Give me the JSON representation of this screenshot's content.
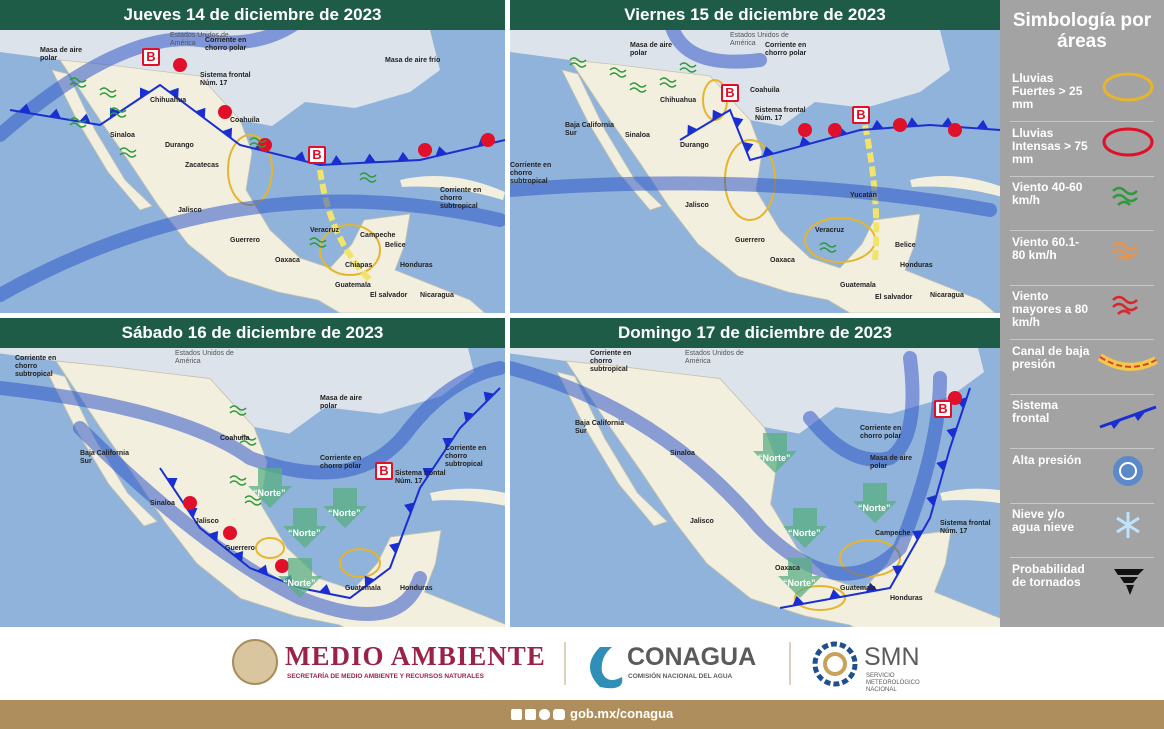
{
  "panels": [
    {
      "title": "Jueves 14 de diciembre de 2023",
      "labels": [
        "Masa de aire polar",
        "Estados Unidos de América",
        "Corriente en chorro polar",
        "Masa de aire frío",
        "Sistema frontal Núm. 17",
        "Chihuahua",
        "Sinaloa",
        "Durango",
        "Coahuila",
        "Zacatecas",
        "Jalisco",
        "Guerrero",
        "Oaxaca",
        "Veracruz",
        "Chiapas",
        "Campeche",
        "Belice",
        "Guatemala",
        "Honduras",
        "El salvador",
        "Nicaragua",
        "Corriente en chorro subtropical"
      ],
      "lows": [
        "B",
        "B"
      ],
      "north": []
    },
    {
      "title": "Viernes 15 de diciembre de 2023",
      "labels": [
        "Masa de aire polar",
        "Estados Unidos de América",
        "Corriente en chorro polar",
        "Sistema frontal Núm. 17",
        "Chihuahua",
        "Sinaloa",
        "Durango",
        "Coahuila",
        "Baja California Sur",
        "Jalisco",
        "Guerrero",
        "Oaxaca",
        "Veracruz",
        "Yucatán",
        "Belice",
        "Guatemala",
        "Honduras",
        "El salvador",
        "Nicaragua",
        "Corriente en chorro subtropical"
      ],
      "lows": [
        "B",
        "B"
      ],
      "north": []
    },
    {
      "title": "Sábado 16 de diciembre de 2023",
      "labels": [
        "Corriente en chorro subtropical",
        "Estados Unidos de América",
        "Masa de aire polar",
        "Corriente en chorro polar",
        "Corriente en chorro subtropical",
        "Sistema frontal Núm. 17",
        "Coahuila",
        "Sinaloa",
        "Baja California Sur",
        "Jalisco",
        "Guerrero",
        "Guatemala",
        "Honduras"
      ],
      "lows": [
        "B"
      ],
      "north": [
        "“Norte”",
        "“Norte”",
        "“Norte”",
        "“Norte”"
      ]
    },
    {
      "title": "Domingo 17 de diciembre de 2023",
      "labels": [
        "Corriente en chorro subtropical",
        "Estados Unidos de América",
        "Corriente en chorro polar",
        "Masa de aire polar",
        "Sistema frontal Núm. 17",
        "Sinaloa",
        "Baja California Sur",
        "Jalisco",
        "Oaxaca",
        "Campeche",
        "Guatemala",
        "Honduras"
      ],
      "lows": [
        "B"
      ],
      "north": [
        "“Norte”",
        "“Norte”",
        "“Norte”",
        "“Norte”"
      ]
    }
  ],
  "legend": {
    "title": "Simbología por áreas",
    "items": [
      "Lluvias Fuertes > 25 mm",
      "Lluvias Intensas > 75 mm",
      "Viento 40-60 km/h",
      "Viento 60.1-80 km/h",
      "Viento mayores a 80 km/h",
      "Canal de baja presión",
      "Sistema frontal",
      "Alta presión",
      "Nieve y/o agua nieve",
      "Probabilidad de tornados"
    ]
  },
  "footer": {
    "org1": "MEDIO AMBIENTE",
    "org1_sub": "SECRETARÍA DE MEDIO AMBIENTE Y RECURSOS NATURALES",
    "org2": "CONAGUA",
    "org2_sub": "COMISIÓN NACIONAL DEL AGUA",
    "org3": "SMN",
    "org3_sub": "SERVICIO METEOROLÓGICO NACIONAL",
    "url": "gob.mx/conagua"
  }
}
